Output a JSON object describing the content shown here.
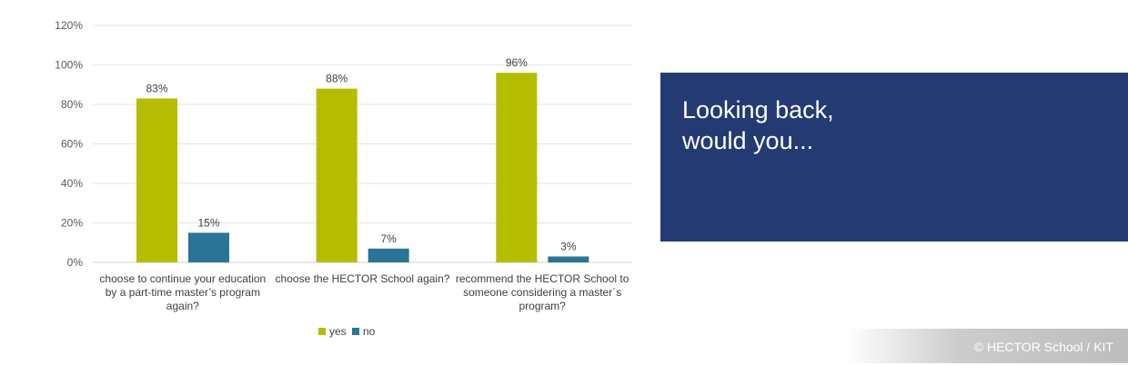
{
  "chart_data": {
    "type": "bar",
    "categories": [
      [
        "choose to continue your education",
        "by a part-time master’s program",
        "again?"
      ],
      [
        "choose the HECTOR School again?"
      ],
      [
        "recommend the HECTOR School to",
        "someone considering a master´s",
        "program?"
      ]
    ],
    "series": [
      {
        "name": "yes",
        "values": [
          83,
          88,
          96
        ],
        "labels": [
          "83%",
          "88%",
          "96%"
        ]
      },
      {
        "name": "no",
        "values": [
          15,
          7,
          3
        ],
        "labels": [
          "15%",
          "7%",
          "3%"
        ]
      }
    ],
    "ylim": [
      0,
      120
    ],
    "yticks": [
      0,
      20,
      40,
      60,
      80,
      100,
      120
    ],
    "ytick_labels": [
      "0%",
      "20%",
      "40%",
      "60%",
      "80%",
      "100%",
      "120%"
    ],
    "grid": true,
    "legend_position": "bottom",
    "colors": {
      "yes": "#b5bd00",
      "no": "#2a7495"
    }
  },
  "panel": {
    "text": "Looking back,\nwould you..."
  },
  "credit": {
    "text": "© HECTOR School / KIT"
  }
}
